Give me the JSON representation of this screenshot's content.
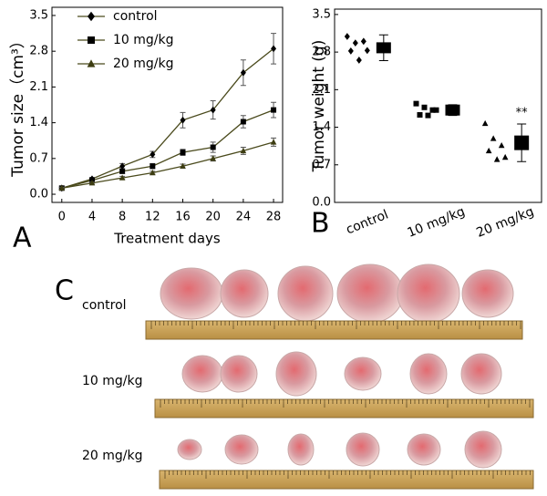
{
  "chart_data": [
    {
      "type": "line",
      "panel": "A",
      "x_label": "Treatment days",
      "y_label": "Tumor size（cm³）",
      "x": [
        0,
        4,
        8,
        12,
        16,
        20,
        24,
        28
      ],
      "series": [
        {
          "name": "control",
          "color": "#000000",
          "marker": "diamond",
          "values": [
            0.12,
            0.3,
            0.55,
            0.78,
            1.45,
            1.65,
            2.38,
            2.85
          ],
          "errors": [
            0.02,
            0.03,
            0.05,
            0.06,
            0.15,
            0.18,
            0.25,
            0.3
          ]
        },
        {
          "name": "10 mg/kg",
          "color": "#000000",
          "marker": "square",
          "values": [
            0.12,
            0.27,
            0.45,
            0.55,
            0.82,
            0.92,
            1.42,
            1.65
          ],
          "errors": [
            0.02,
            0.03,
            0.04,
            0.05,
            0.06,
            0.1,
            0.12,
            0.15
          ]
        },
        {
          "name": "20 mg/kg",
          "color": "#3d3d12",
          "marker": "triangle",
          "values": [
            0.12,
            0.22,
            0.32,
            0.42,
            0.55,
            0.7,
            0.85,
            1.02
          ],
          "errors": [
            0.02,
            0.02,
            0.03,
            0.03,
            0.04,
            0.05,
            0.07,
            0.08
          ]
        }
      ],
      "line_color": "#4a4a1c",
      "xlim": [
        -1.3,
        29.2
      ],
      "xticks": [
        0,
        4,
        8,
        12,
        16,
        20,
        24,
        28
      ],
      "ylim": [
        -0.16,
        3.66
      ],
      "yticks": [
        {
          "value": 0,
          "label": "0.0"
        },
        0.7,
        1.4,
        2.1,
        2.8,
        3.5
      ],
      "legend": "top-left"
    },
    {
      "type": "dot",
      "panel": "B",
      "y_label": "Tumor weight (g)",
      "categories": [
        "control",
        "10 mg/kg",
        "20 mg/kg"
      ],
      "groups": [
        {
          "marker": "diamond",
          "values": [
            3.09,
            2.97,
            3.0,
            2.82,
            2.65,
            2.83
          ],
          "mean": 2.88,
          "error": 0.24
        },
        {
          "marker": "square",
          "values": [
            1.84,
            1.77,
            1.72,
            1.63,
            1.62,
            1.72
          ],
          "mean": 1.72,
          "error": 0.1
        },
        {
          "marker": "triangle",
          "values": [
            1.47,
            1.19,
            1.06,
            0.96,
            0.8,
            0.84
          ],
          "mean": 1.11,
          "error": 0.35,
          "annotation": "**"
        }
      ],
      "color": "#000000",
      "ylim": [
        0,
        3.6
      ],
      "yticks": [
        {
          "value": 0,
          "label": "0.0"
        },
        0.7,
        1.4,
        2.1,
        2.8,
        3.5
      ]
    }
  ],
  "panel_c": {
    "label": "C",
    "rows": [
      "control",
      "10 mg/kg",
      "20 mg/kg"
    ]
  }
}
